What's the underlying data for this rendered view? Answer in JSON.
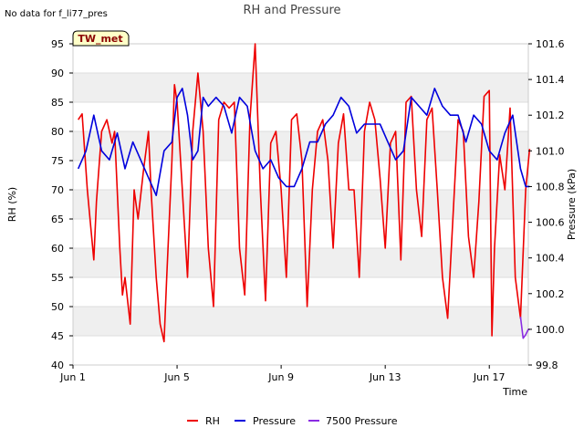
{
  "corner_note": "No data for f_li77_pres",
  "badge": "TW_met",
  "chart_data": {
    "type": "line",
    "title": "RH and Pressure",
    "xlabel": "Time",
    "ylabel_left": "RH (%)",
    "ylabel_right": "Pressure (kPa)",
    "x_unit": "days since Jun 1",
    "xlim": [
      0,
      17.5
    ],
    "x_ticks": [
      {
        "x": 0,
        "label": "Jun 1"
      },
      {
        "x": 4,
        "label": "Jun 5"
      },
      {
        "x": 8,
        "label": "Jun 9"
      },
      {
        "x": 12,
        "label": "Jun 13"
      },
      {
        "x": 16,
        "label": "Jun 17"
      }
    ],
    "ylim_left": [
      40,
      95
    ],
    "ylim_right": [
      99.8,
      101.6
    ],
    "left_ticks": [
      40,
      45,
      50,
      55,
      60,
      65,
      70,
      75,
      80,
      85,
      90,
      95
    ],
    "right_ticks": [
      "99.8",
      "100.0",
      "100.2",
      "100.4",
      "100.6",
      "100.8",
      "101.0",
      "101.2",
      "101.4",
      "101.6"
    ],
    "grid": "horizontal bands",
    "legend_position": "bottom-center",
    "series": [
      {
        "name": "RH",
        "axis": "left",
        "color": "#ee0000",
        "x": [
          0.2,
          0.35,
          0.55,
          0.8,
          0.9,
          1.1,
          1.3,
          1.5,
          1.6,
          1.8,
          1.9,
          2.0,
          2.2,
          2.35,
          2.5,
          2.7,
          2.9,
          3.0,
          3.2,
          3.35,
          3.5,
          3.6,
          3.8,
          3.9,
          4.0,
          4.2,
          4.4,
          4.6,
          4.8,
          5.0,
          5.2,
          5.4,
          5.6,
          5.8,
          6.0,
          6.2,
          6.4,
          6.6,
          6.8,
          7.0,
          7.2,
          7.4,
          7.6,
          7.8,
          8.0,
          8.2,
          8.4,
          8.6,
          8.8,
          9.0,
          9.2,
          9.4,
          9.6,
          9.8,
          10.0,
          10.2,
          10.4,
          10.6,
          10.8,
          11.0,
          11.2,
          11.4,
          11.6,
          11.8,
          12.0,
          12.2,
          12.4,
          12.6,
          12.8,
          13.0,
          13.2,
          13.4,
          13.6,
          13.8,
          14.0,
          14.2,
          14.4,
          14.6,
          14.8,
          15.0,
          15.2,
          15.4,
          15.6,
          15.8,
          16.0,
          16.1,
          16.2,
          16.4,
          16.6,
          16.8,
          17.0,
          17.2,
          17.4,
          17.55
        ],
        "values": [
          82,
          83,
          70,
          58,
          68,
          80,
          82,
          78,
          80,
          60,
          52,
          55,
          47,
          70,
          65,
          73,
          80,
          70,
          55,
          47,
          44,
          55,
          75,
          88,
          85,
          70,
          55,
          80,
          90,
          80,
          60,
          50,
          82,
          85,
          84,
          85,
          60,
          52,
          82,
          95,
          70,
          51,
          78,
          80,
          70,
          55,
          82,
          83,
          75,
          50,
          70,
          80,
          82,
          75,
          60,
          78,
          83,
          70,
          70,
          55,
          80,
          85,
          82,
          72,
          60,
          78,
          80,
          58,
          85,
          86,
          70,
          62,
          82,
          84,
          70,
          55,
          48,
          65,
          82,
          80,
          62,
          55,
          68,
          86,
          87,
          45,
          60,
          76,
          70,
          84,
          55,
          48,
          70,
          77
        ]
      },
      {
        "name": "Pressure",
        "axis": "right",
        "color": "#0000dd",
        "x": [
          0.2,
          0.5,
          0.8,
          1.1,
          1.4,
          1.7,
          2.0,
          2.3,
          2.6,
          2.9,
          3.2,
          3.5,
          3.8,
          4.0,
          4.2,
          4.4,
          4.6,
          4.8,
          5.0,
          5.2,
          5.5,
          5.8,
          6.1,
          6.4,
          6.7,
          7.0,
          7.3,
          7.6,
          7.9,
          8.2,
          8.5,
          8.8,
          9.1,
          9.4,
          9.7,
          10.0,
          10.3,
          10.6,
          10.9,
          11.2,
          11.5,
          11.8,
          12.1,
          12.4,
          12.7,
          13.0,
          13.3,
          13.6,
          13.9,
          14.2,
          14.5,
          14.8,
          15.1,
          15.4,
          15.7,
          16.0,
          16.3,
          16.6,
          16.9,
          17.2,
          17.4,
          17.55
        ],
        "values": [
          100.9,
          101.0,
          101.2,
          101.0,
          100.95,
          101.1,
          100.9,
          101.05,
          100.95,
          100.85,
          100.75,
          101.0,
          101.05,
          101.3,
          101.35,
          101.2,
          100.95,
          101.0,
          101.3,
          101.25,
          101.3,
          101.25,
          101.1,
          101.3,
          101.25,
          101.0,
          100.9,
          100.95,
          100.85,
          100.8,
          100.8,
          100.9,
          101.05,
          101.05,
          101.15,
          101.2,
          101.3,
          101.25,
          101.1,
          101.15,
          101.15,
          101.15,
          101.05,
          100.95,
          101.0,
          101.3,
          101.25,
          101.2,
          101.35,
          101.25,
          101.2,
          101.2,
          101.05,
          101.2,
          101.15,
          101.0,
          100.95,
          101.1,
          101.2,
          100.9,
          100.8,
          100.8
        ]
      },
      {
        "name": "7500 Pressure",
        "axis": "right",
        "color": "#8a2be2",
        "x": [
          17.2,
          17.3,
          17.4,
          17.5,
          17.55
        ],
        "values": [
          100.07,
          99.95,
          99.97,
          100.0,
          100.0
        ]
      }
    ]
  }
}
